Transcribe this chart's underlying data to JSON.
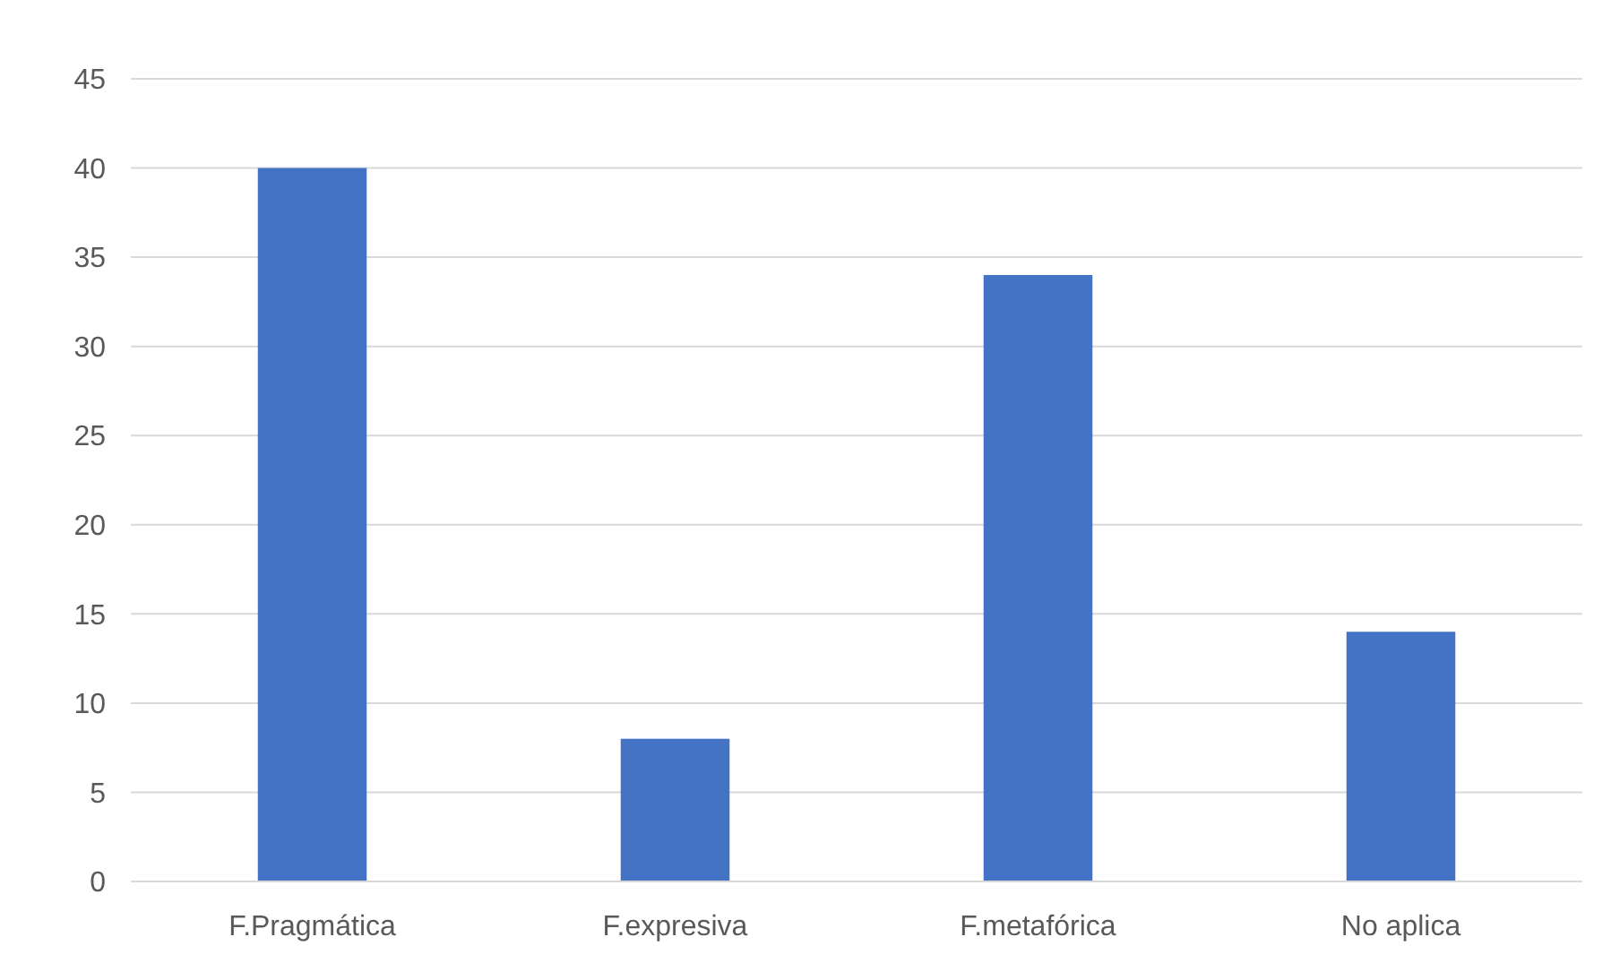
{
  "chart_data": {
    "type": "bar",
    "categories": [
      "F.Pragmática",
      "F.expresiva",
      "F.metafórica",
      "No aplica"
    ],
    "values": [
      40,
      8,
      34,
      14
    ],
    "color": "#4472c4",
    "ylim": [
      0,
      45
    ],
    "yticks": [
      0,
      5,
      10,
      15,
      20,
      25,
      30,
      35,
      40,
      45
    ],
    "grid": "y"
  }
}
